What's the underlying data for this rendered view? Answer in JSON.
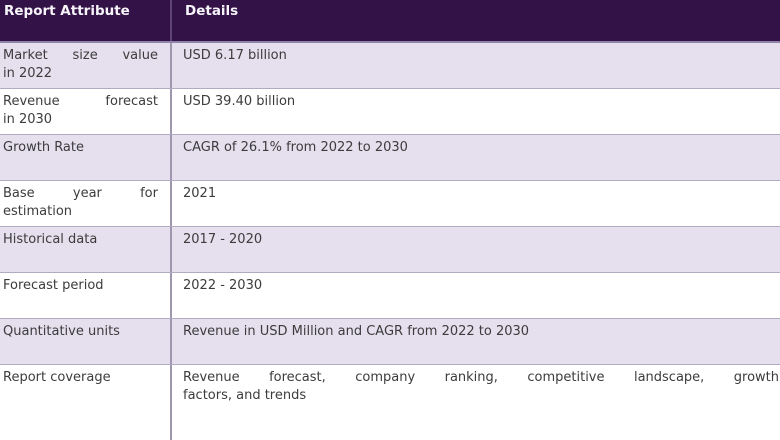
{
  "table": {
    "header": {
      "attribute": "Report Attribute",
      "details": "Details"
    },
    "colors": {
      "header_bg": "#331347",
      "header_text": "#F7F5FA",
      "header_divider": "#5E4379",
      "header_bottom_border": "#9083A8",
      "row_shaded_bg": "#E5DFEE",
      "row_plain_bg": "#FFFFFF",
      "row_border": "#B2AAC1",
      "body_divider": "#9E96AD",
      "body_text": "#3C3C3C"
    },
    "rows": [
      {
        "attribute_lines": [
          "Market size value",
          "in 2022"
        ],
        "detail_lines": [
          "USD 6.17 billion"
        ],
        "shaded": true
      },
      {
        "attribute_lines": [
          "Revenue forecast",
          "in 2030"
        ],
        "detail_lines": [
          "USD 39.40 billion"
        ],
        "shaded": false
      },
      {
        "attribute_lines": [
          "Growth Rate"
        ],
        "detail_lines": [
          "CAGR of 26.1% from 2022 to 2030"
        ],
        "shaded": true
      },
      {
        "attribute_lines": [
          "Base year for",
          "estimation"
        ],
        "detail_lines": [
          "2021"
        ],
        "shaded": false
      },
      {
        "attribute_lines": [
          "Historical data"
        ],
        "detail_lines": [
          "2017 - 2020"
        ],
        "shaded": true
      },
      {
        "attribute_lines": [
          "Forecast period"
        ],
        "detail_lines": [
          "2022 - 2030"
        ],
        "shaded": false
      },
      {
        "attribute_lines": [
          "Quantitative units"
        ],
        "detail_lines": [
          "Revenue in USD Million and CAGR from 2022 to 2030"
        ],
        "shaded": true
      },
      {
        "attribute_lines": [
          "Report coverage"
        ],
        "detail_lines": [
          "Revenue forecast, company ranking, competitive landscape, growth",
          "factors, and trends"
        ],
        "shaded": false
      }
    ]
  }
}
